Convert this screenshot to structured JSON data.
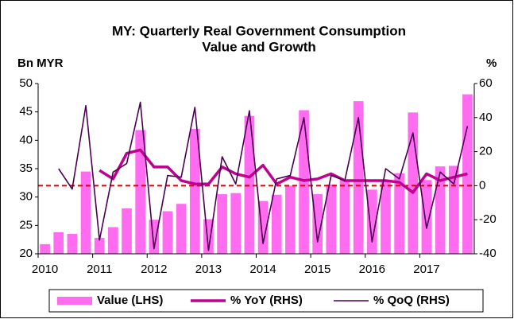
{
  "chart_data": {
    "type": "bar_line",
    "title": [
      "MY: Quarterly Real Government Consumption",
      "Value and Growth"
    ],
    "y_label": "Bn MYR",
    "y2_label": "%",
    "categories": [
      "2010",
      null,
      null,
      null,
      "2011",
      null,
      null,
      null,
      "2012",
      null,
      null,
      null,
      "2013",
      null,
      null,
      null,
      "2014",
      null,
      null,
      null,
      "2015",
      null,
      null,
      null,
      "2016",
      null,
      null,
      null,
      "2017",
      null,
      null,
      null
    ],
    "series": [
      {
        "name": "Value (LHS)",
        "type": "bar",
        "color": "#ff6cf0",
        "values": [
          21.7,
          23.8,
          23.5,
          34.5,
          22.8,
          24.7,
          28.0,
          41.8,
          26.0,
          27.5,
          28.8,
          42.0,
          26.1,
          30.5,
          30.7,
          44.3,
          29.3,
          30.4,
          32.0,
          45.3,
          30.5,
          32.2,
          33.0,
          46.9,
          31.3,
          33.0,
          34.2,
          44.9,
          33.0,
          35.4,
          35.5,
          48.1
        ]
      },
      {
        "name": "% YoY (RHS)",
        "type": "line",
        "axis": "y2",
        "color": "#c0008f",
        "width": 3.5,
        "values": [
          null,
          null,
          null,
          null,
          9,
          4,
          19,
          21,
          11,
          11,
          3,
          1,
          1,
          11,
          7,
          5,
          12,
          1,
          5,
          3,
          4,
          7,
          3,
          3,
          3,
          3,
          2,
          -4,
          7,
          3,
          5,
          7
        ]
      },
      {
        "name": "% QoQ (RHS)",
        "type": "line",
        "axis": "y2",
        "color": "#4a0050",
        "width": 1.6,
        "values": [
          null,
          10,
          -2,
          47,
          -32,
          8,
          13,
          49,
          -37,
          6,
          5,
          46,
          -38,
          17,
          1,
          44,
          -34,
          4,
          6,
          40,
          -33,
          6,
          3,
          40,
          -33,
          10,
          4,
          31,
          -25,
          8,
          1,
          35
        ]
      }
    ],
    "reference_line": {
      "axis": "y2",
      "value": 0,
      "color": "#e00000"
    },
    "ylim": [
      20,
      50
    ],
    "yticks": [
      20,
      25,
      30,
      35,
      40,
      45,
      50
    ],
    "y2lim": [
      -40,
      60
    ],
    "y2ticks": [
      -40,
      -20,
      0,
      20,
      40,
      60
    ],
    "legend": "bottom"
  }
}
